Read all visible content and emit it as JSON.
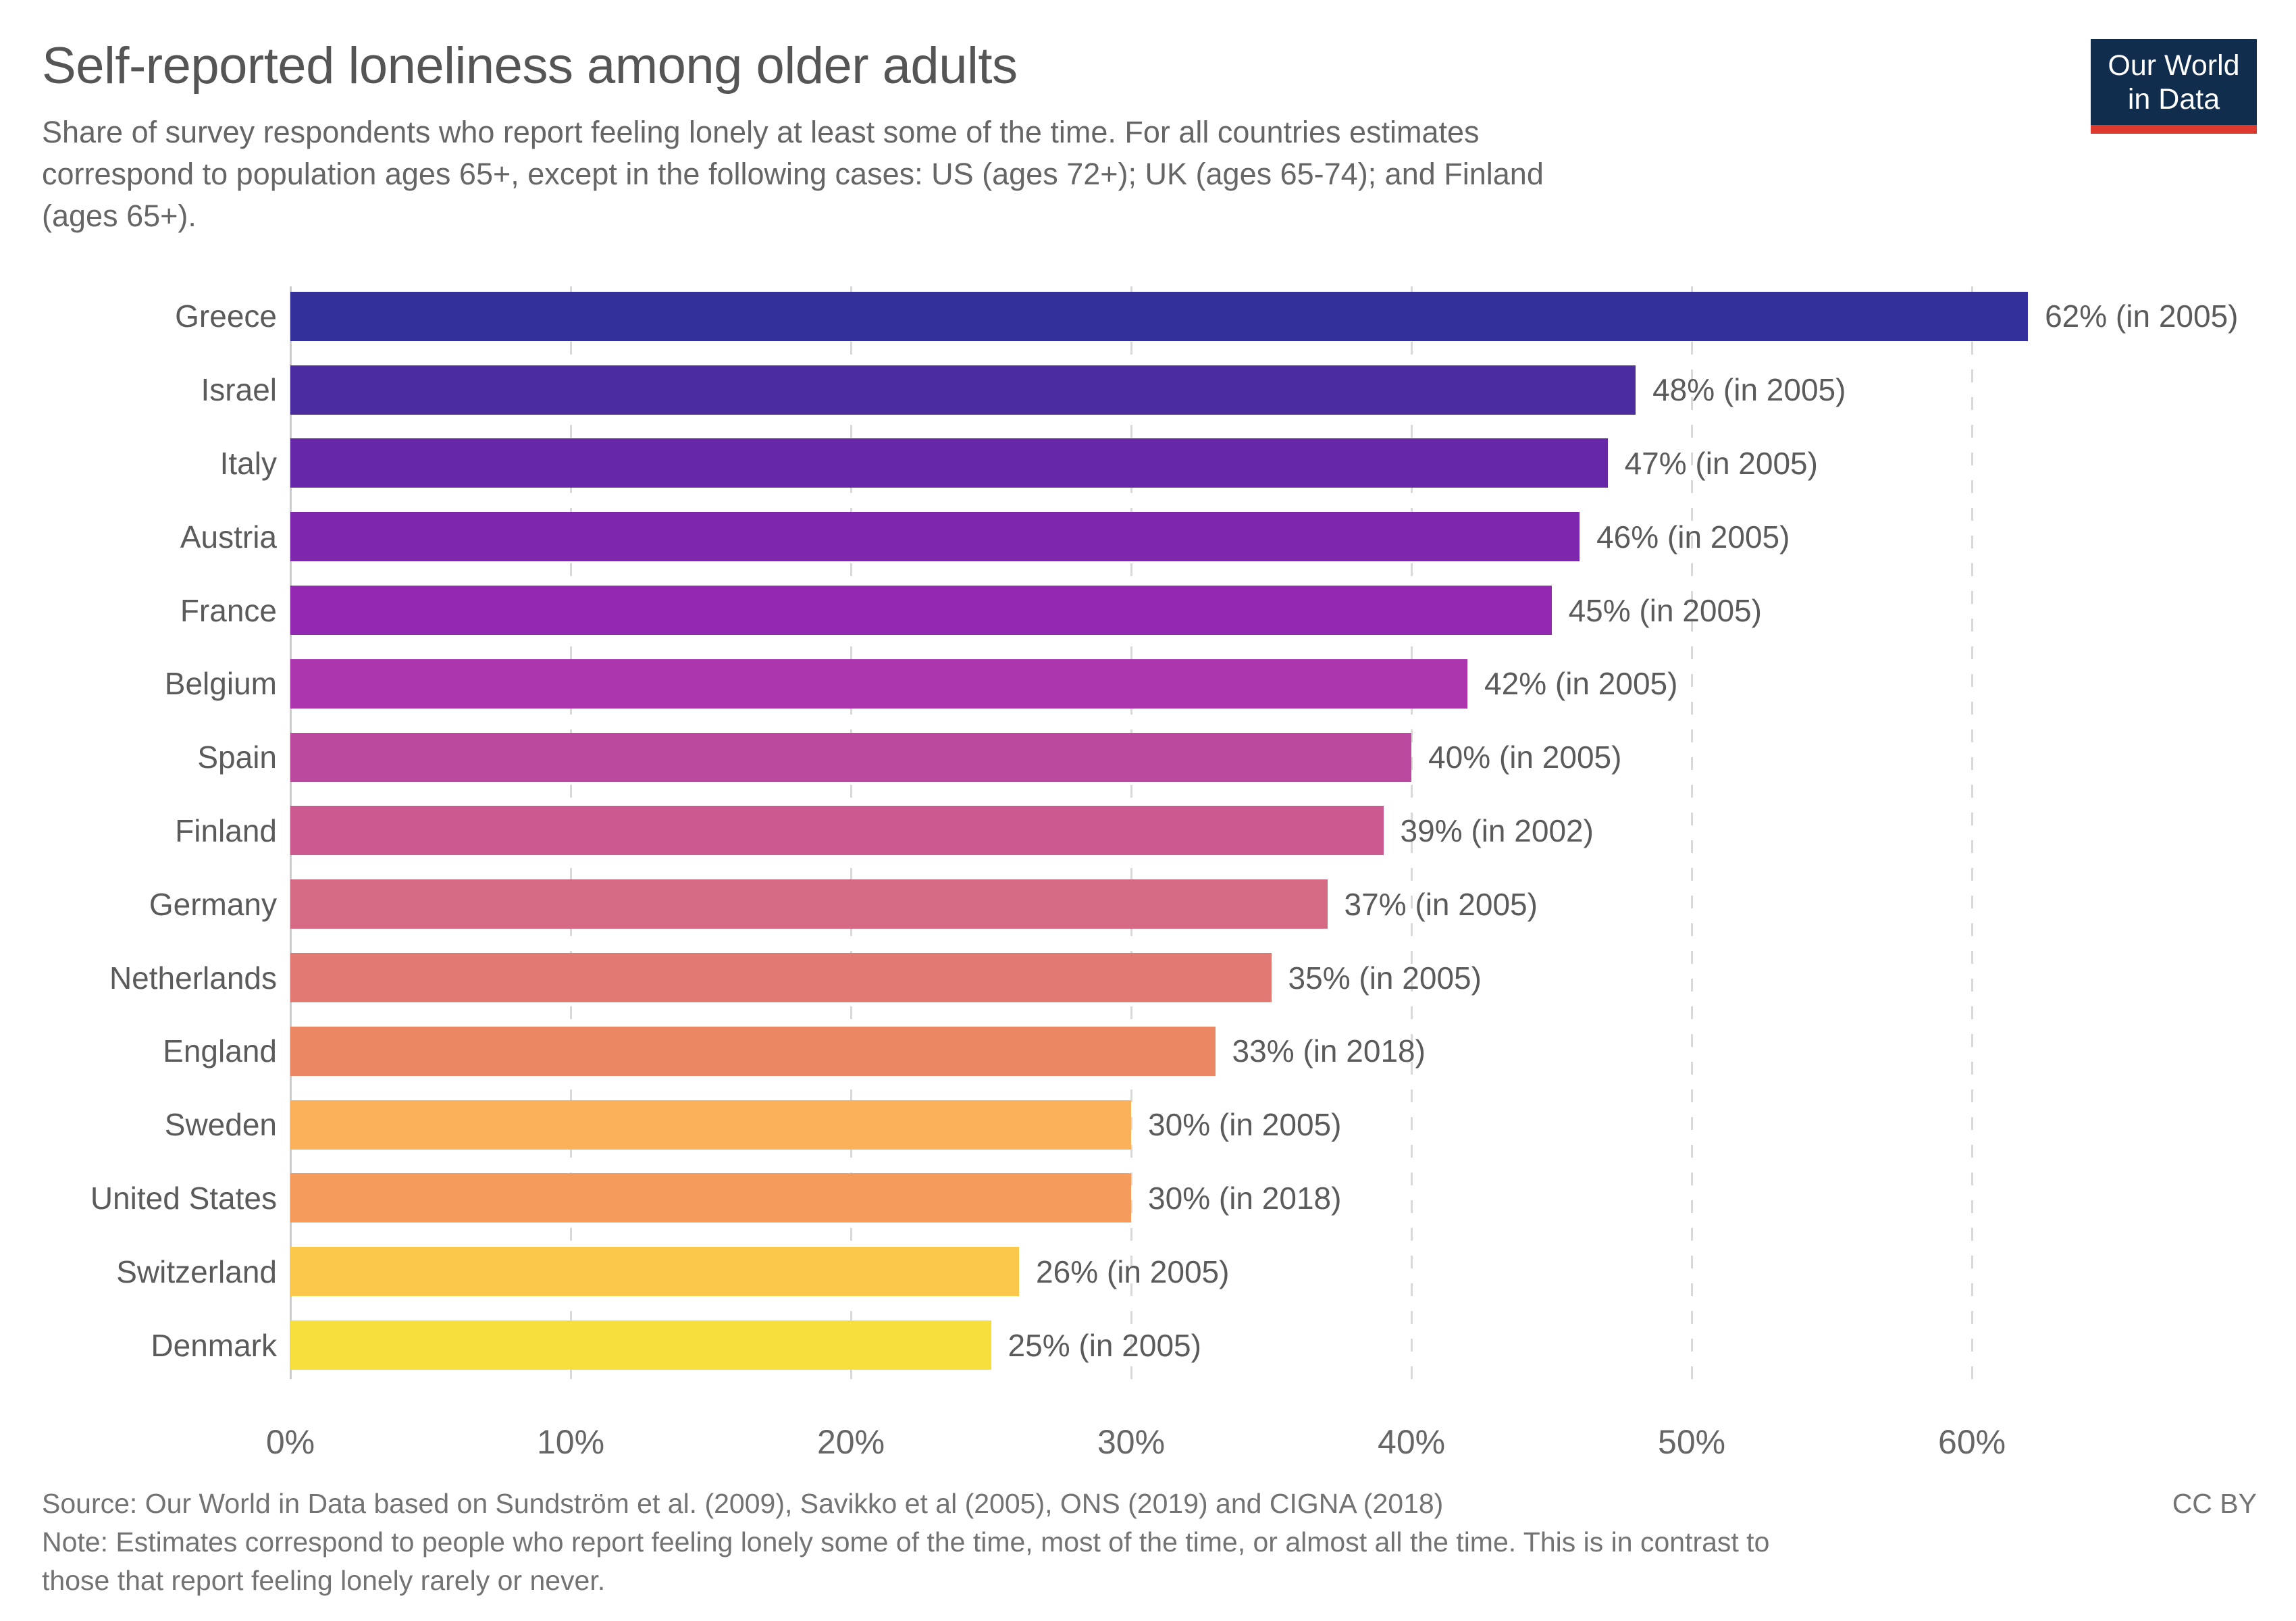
{
  "header": {
    "title": "Self-reported loneliness among older adults",
    "subtitle_lines": [
      "Share of survey respondents who report feeling lonely at least some of the time. For all countries estimates",
      "correspond to population ages 65+, except in the following cases: US (ages 72+); UK (ages 65-74); and Finland",
      "(ages 65+)."
    ],
    "logo": {
      "line1": "Our World",
      "line2": "in Data",
      "bg_color": "#102d4e",
      "underline_color": "#dc3a2f"
    }
  },
  "chart_data": {
    "type": "bar",
    "orientation": "horizontal",
    "title": "Self-reported loneliness among older adults",
    "categories": [
      "Greece",
      "Israel",
      "Italy",
      "Austria",
      "France",
      "Belgium",
      "Spain",
      "Finland",
      "Germany",
      "Netherlands",
      "England",
      "Sweden",
      "United States",
      "Switzerland",
      "Denmark"
    ],
    "values": [
      62,
      48,
      47,
      46,
      45,
      42,
      40,
      39,
      37,
      35,
      33,
      30,
      30,
      26,
      25
    ],
    "years": [
      2005,
      2005,
      2005,
      2005,
      2005,
      2005,
      2005,
      2002,
      2005,
      2005,
      2018,
      2005,
      2018,
      2005,
      2005
    ],
    "value_labels": [
      "62% (in 2005)",
      "48% (in 2005)",
      "47% (in 2005)",
      "46% (in 2005)",
      "45% (in 2005)",
      "42% (in 2005)",
      "40% (in 2005)",
      "39% (in 2002)",
      "37% (in 2005)",
      "35% (in 2005)",
      "33% (in 2018)",
      "30% (in 2005)",
      "30% (in 2018)",
      "26% (in 2005)",
      "25% (in 2005)"
    ],
    "bar_colors": [
      "#33309a",
      "#4c2da0",
      "#6628a9",
      "#7c27ae",
      "#9329b2",
      "#ab36ad",
      "#bb499e",
      "#ca5a90",
      "#d46a84",
      "#e17a72",
      "#ec8764",
      "#fbb05a",
      "#f59b5c",
      "#fcc84c",
      "#f7e03d"
    ],
    "xlabel": "",
    "ylabel": "",
    "x_ticks": [
      0,
      10,
      20,
      30,
      40,
      50,
      60
    ],
    "x_tick_labels": [
      "0%",
      "10%",
      "20%",
      "30%",
      "40%",
      "50%",
      "60%"
    ],
    "xlim": [
      0,
      70.6
    ],
    "grid": "dashed-vertical"
  },
  "footer": {
    "source": "Source: Our World in Data based on Sundström et al. (2009), Savikko et al (2005), ONS (2019) and CIGNA (2018)",
    "license": "CC BY",
    "note_lines": [
      "Note: Estimates correspond to people who report feeling lonely some of the time, most of the time, or almost all the time. This is in contrast to",
      "those that report feeling lonely rarely or never."
    ]
  }
}
